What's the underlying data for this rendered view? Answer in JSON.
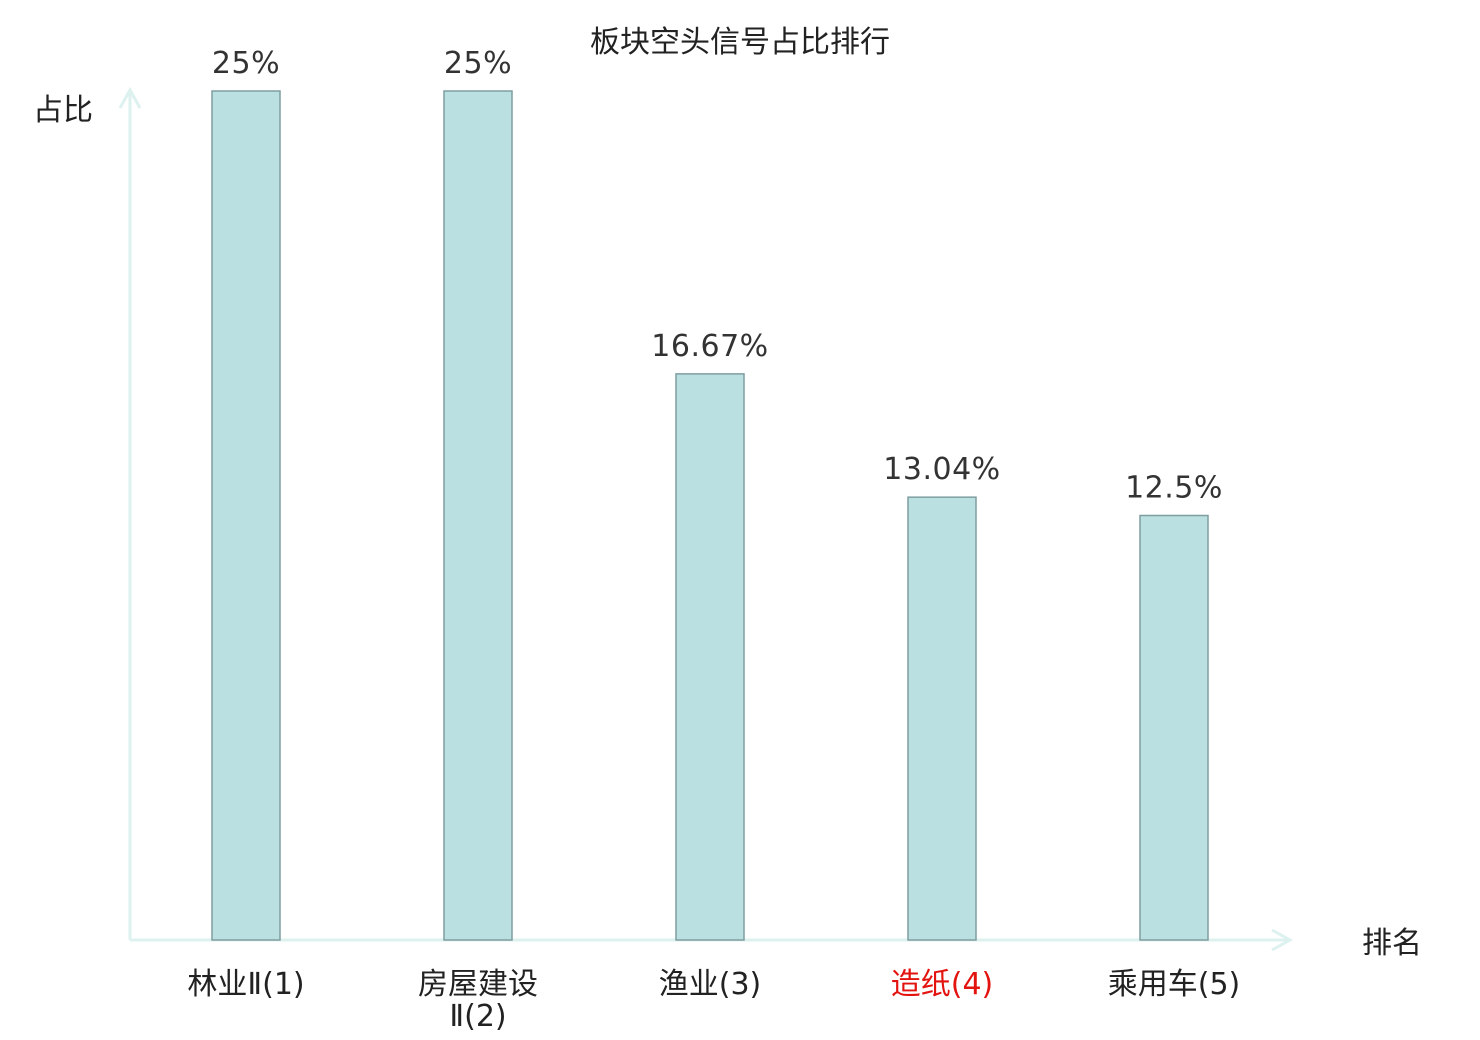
{
  "chart_data": {
    "type": "bar",
    "title": "板块空头信号占比排行",
    "ylabel": "占比",
    "xlabel": "排名",
    "categories": [
      {
        "lines": [
          "林业Ⅱ(1)"
        ],
        "highlight": false
      },
      {
        "lines": [
          "房屋建设",
          "Ⅱ(2)"
        ],
        "highlight": false
      },
      {
        "lines": [
          "渔业(3)"
        ],
        "highlight": false
      },
      {
        "lines": [
          "造纸(4)"
        ],
        "highlight": true
      },
      {
        "lines": [
          "乘用车(5)"
        ],
        "highlight": false
      }
    ],
    "values": [
      25,
      25,
      16.67,
      13.04,
      12.5
    ],
    "value_labels": [
      "25%",
      "25%",
      "16.67%",
      "13.04%",
      "12.5%"
    ],
    "ylim": [
      0,
      25
    ],
    "grid": false,
    "colors": {
      "bar_fill": "#bbe0e2",
      "bar_stroke": "#7f9ea0",
      "axis": "#ddf1ef",
      "highlight_text": "#e3130f",
      "text": "#222222"
    }
  }
}
